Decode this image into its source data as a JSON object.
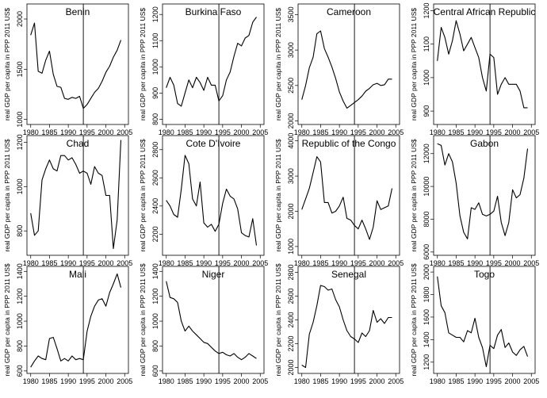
{
  "figure": {
    "ylabel": "real GDP per capita in PPP 2011 US$",
    "vline_year": 1994,
    "xticks": [
      1980,
      1985,
      1990,
      1995,
      2000,
      2005
    ],
    "years": [
      1980,
      1981,
      1982,
      1983,
      1984,
      1985,
      1986,
      1987,
      1988,
      1989,
      1990,
      1991,
      1992,
      1993,
      1994,
      1995,
      1996,
      1997,
      1998,
      1999,
      2000,
      2001,
      2002,
      2003,
      2004
    ]
  },
  "chart_data": [
    {
      "type": "line",
      "title": "Benin",
      "ylabel": "real GDP per capita in PPP 2011 US$",
      "xlim": [
        1979,
        2006
      ],
      "ylim": [
        950,
        2150
      ],
      "yticks": [
        1000,
        1500,
        2000
      ],
      "values": [
        1840,
        1960,
        1480,
        1460,
        1590,
        1680,
        1450,
        1330,
        1320,
        1210,
        1200,
        1220,
        1210,
        1230,
        1110,
        1150,
        1210,
        1270,
        1310,
        1380,
        1470,
        1530,
        1620,
        1690,
        1790
      ]
    },
    {
      "type": "line",
      "title": "Burkina Faso",
      "ylabel": "real GDP per capita in PPP 2011 US$",
      "xlim": [
        1979,
        2006
      ],
      "ylim": [
        780,
        1240
      ],
      "yticks": [
        800,
        900,
        1000,
        1100,
        1200
      ],
      "values": [
        920,
        960,
        930,
        860,
        850,
        900,
        950,
        920,
        960,
        940,
        910,
        960,
        930,
        930,
        870,
        890,
        950,
        980,
        1040,
        1090,
        1080,
        1110,
        1120,
        1170,
        1190
      ]
    },
    {
      "type": "line",
      "title": "Cameroon",
      "ylabel": "real GDP per capita in PPP 2011 US$",
      "xlim": [
        1979,
        2006
      ],
      "ylim": [
        1950,
        3650
      ],
      "yticks": [
        2000,
        2500,
        3000,
        3500
      ],
      "values": [
        2300,
        2500,
        2750,
        2900,
        3230,
        3270,
        3020,
        2900,
        2760,
        2600,
        2410,
        2280,
        2180,
        2220,
        2260,
        2300,
        2350,
        2420,
        2460,
        2510,
        2530,
        2500,
        2510,
        2590,
        2590
      ]
    },
    {
      "type": "line",
      "title": "Central African Republic",
      "ylabel": "real GDP per capita in PPP 2011 US$",
      "xlim": [
        1979,
        2006
      ],
      "ylim": [
        860,
        1220
      ],
      "yticks": [
        900,
        1000,
        1100,
        1200
      ],
      "values": [
        1050,
        1150,
        1120,
        1070,
        1110,
        1170,
        1130,
        1080,
        1100,
        1120,
        1090,
        1060,
        1000,
        960,
        1070,
        1060,
        950,
        980,
        1000,
        980,
        980,
        980,
        960,
        910,
        910
      ]
    },
    {
      "type": "line",
      "title": "Chad",
      "ylabel": "real GDP per capita in PPP 2011 US$",
      "xlim": [
        1979,
        2006
      ],
      "ylim": [
        690,
        1230
      ],
      "yticks": [
        800,
        1000,
        1200
      ],
      "values": [
        880,
        780,
        800,
        1030,
        1080,
        1120,
        1080,
        1070,
        1140,
        1140,
        1120,
        1130,
        1100,
        1060,
        1070,
        1060,
        1010,
        1090,
        1060,
        1050,
        960,
        960,
        720,
        850,
        1210
      ]
    },
    {
      "type": "line",
      "title": "Cote D'Ivoire",
      "ylabel": "real GDP per capita in PPP 2011 US$",
      "xlim": [
        1979,
        2006
      ],
      "ylim": [
        2050,
        2900
      ],
      "yticks": [
        2200,
        2400,
        2600,
        2800
      ],
      "values": [
        2440,
        2400,
        2340,
        2320,
        2520,
        2760,
        2700,
        2450,
        2400,
        2570,
        2280,
        2250,
        2270,
        2220,
        2270,
        2420,
        2520,
        2470,
        2450,
        2380,
        2210,
        2190,
        2180,
        2310,
        2120
      ]
    },
    {
      "type": "line",
      "title": "Republic of the Congo",
      "ylabel": "real GDP per capita in PPP 2011 US$",
      "xlim": [
        1979,
        2006
      ],
      "ylim": [
        750,
        4150
      ],
      "yticks": [
        1000,
        2000,
        3000,
        4000
      ],
      "values": [
        2050,
        2350,
        2650,
        3100,
        3550,
        3400,
        2250,
        2250,
        1950,
        2000,
        2150,
        2400,
        1800,
        1750,
        1600,
        1500,
        1750,
        1500,
        1200,
        1550,
        2300,
        2050,
        2100,
        2150,
        2650
      ]
    },
    {
      "type": "line",
      "title": "Gabon",
      "ylabel": "real GDP per capita in PPP 2011 US$",
      "xlim": [
        1979,
        2006
      ],
      "ylim": [
        5800,
        13100
      ],
      "yticks": [
        6000,
        8000,
        10000,
        12000
      ],
      "values": [
        12600,
        12500,
        11300,
        12000,
        11500,
        10200,
        8200,
        7200,
        6800,
        8700,
        8600,
        9000,
        8300,
        8200,
        8300,
        8500,
        9400,
        7800,
        7000,
        7800,
        9800,
        9300,
        9500,
        10500,
        12300
      ]
    },
    {
      "type": "line",
      "title": "Mali",
      "ylabel": "real GDP per capita in PPP 2011 US$",
      "xlim": [
        1979,
        2006
      ],
      "ylim": [
        580,
        1440
      ],
      "yticks": [
        600,
        800,
        1000,
        1200,
        1400
      ],
      "values": [
        630,
        680,
        720,
        700,
        690,
        860,
        870,
        780,
        680,
        700,
        680,
        720,
        690,
        700,
        690,
        920,
        1040,
        1120,
        1170,
        1180,
        1120,
        1230,
        1300,
        1380,
        1270
      ]
    },
    {
      "type": "line",
      "title": "Niger",
      "ylabel": "real GDP per capita in PPP 2011 US$",
      "xlim": [
        1979,
        2006
      ],
      "ylim": [
        580,
        1440
      ],
      "yticks": [
        600,
        800,
        1000,
        1200,
        1400
      ],
      "values": [
        1320,
        1190,
        1180,
        1150,
        1000,
        920,
        960,
        920,
        890,
        860,
        830,
        820,
        790,
        760,
        740,
        750,
        730,
        720,
        740,
        710,
        690,
        710,
        740,
        720,
        700
      ]
    },
    {
      "type": "line",
      "title": "Senegal",
      "ylabel": "real GDP per capita in PPP 2011 US$",
      "xlim": [
        1979,
        2006
      ],
      "ylim": [
        1950,
        2850
      ],
      "yticks": [
        2000,
        2200,
        2400,
        2600,
        2800
      ],
      "values": [
        2020,
        2000,
        2280,
        2380,
        2520,
        2690,
        2680,
        2650,
        2660,
        2570,
        2510,
        2400,
        2310,
        2260,
        2240,
        2210,
        2290,
        2260,
        2310,
        2480,
        2380,
        2410,
        2370,
        2420,
        2420
      ]
    },
    {
      "type": "line",
      "title": "Togo",
      "ylabel": "real GDP per capita in PPP 2011 US$",
      "xlim": [
        1979,
        2006
      ],
      "ylim": [
        1100,
        2050
      ],
      "yticks": [
        1200,
        1400,
        1600,
        1800,
        2000
      ],
      "values": [
        1960,
        1700,
        1640,
        1460,
        1440,
        1420,
        1420,
        1380,
        1480,
        1460,
        1590,
        1420,
        1330,
        1160,
        1350,
        1320,
        1440,
        1490,
        1330,
        1370,
        1290,
        1260,
        1310,
        1340,
        1250
      ]
    }
  ]
}
